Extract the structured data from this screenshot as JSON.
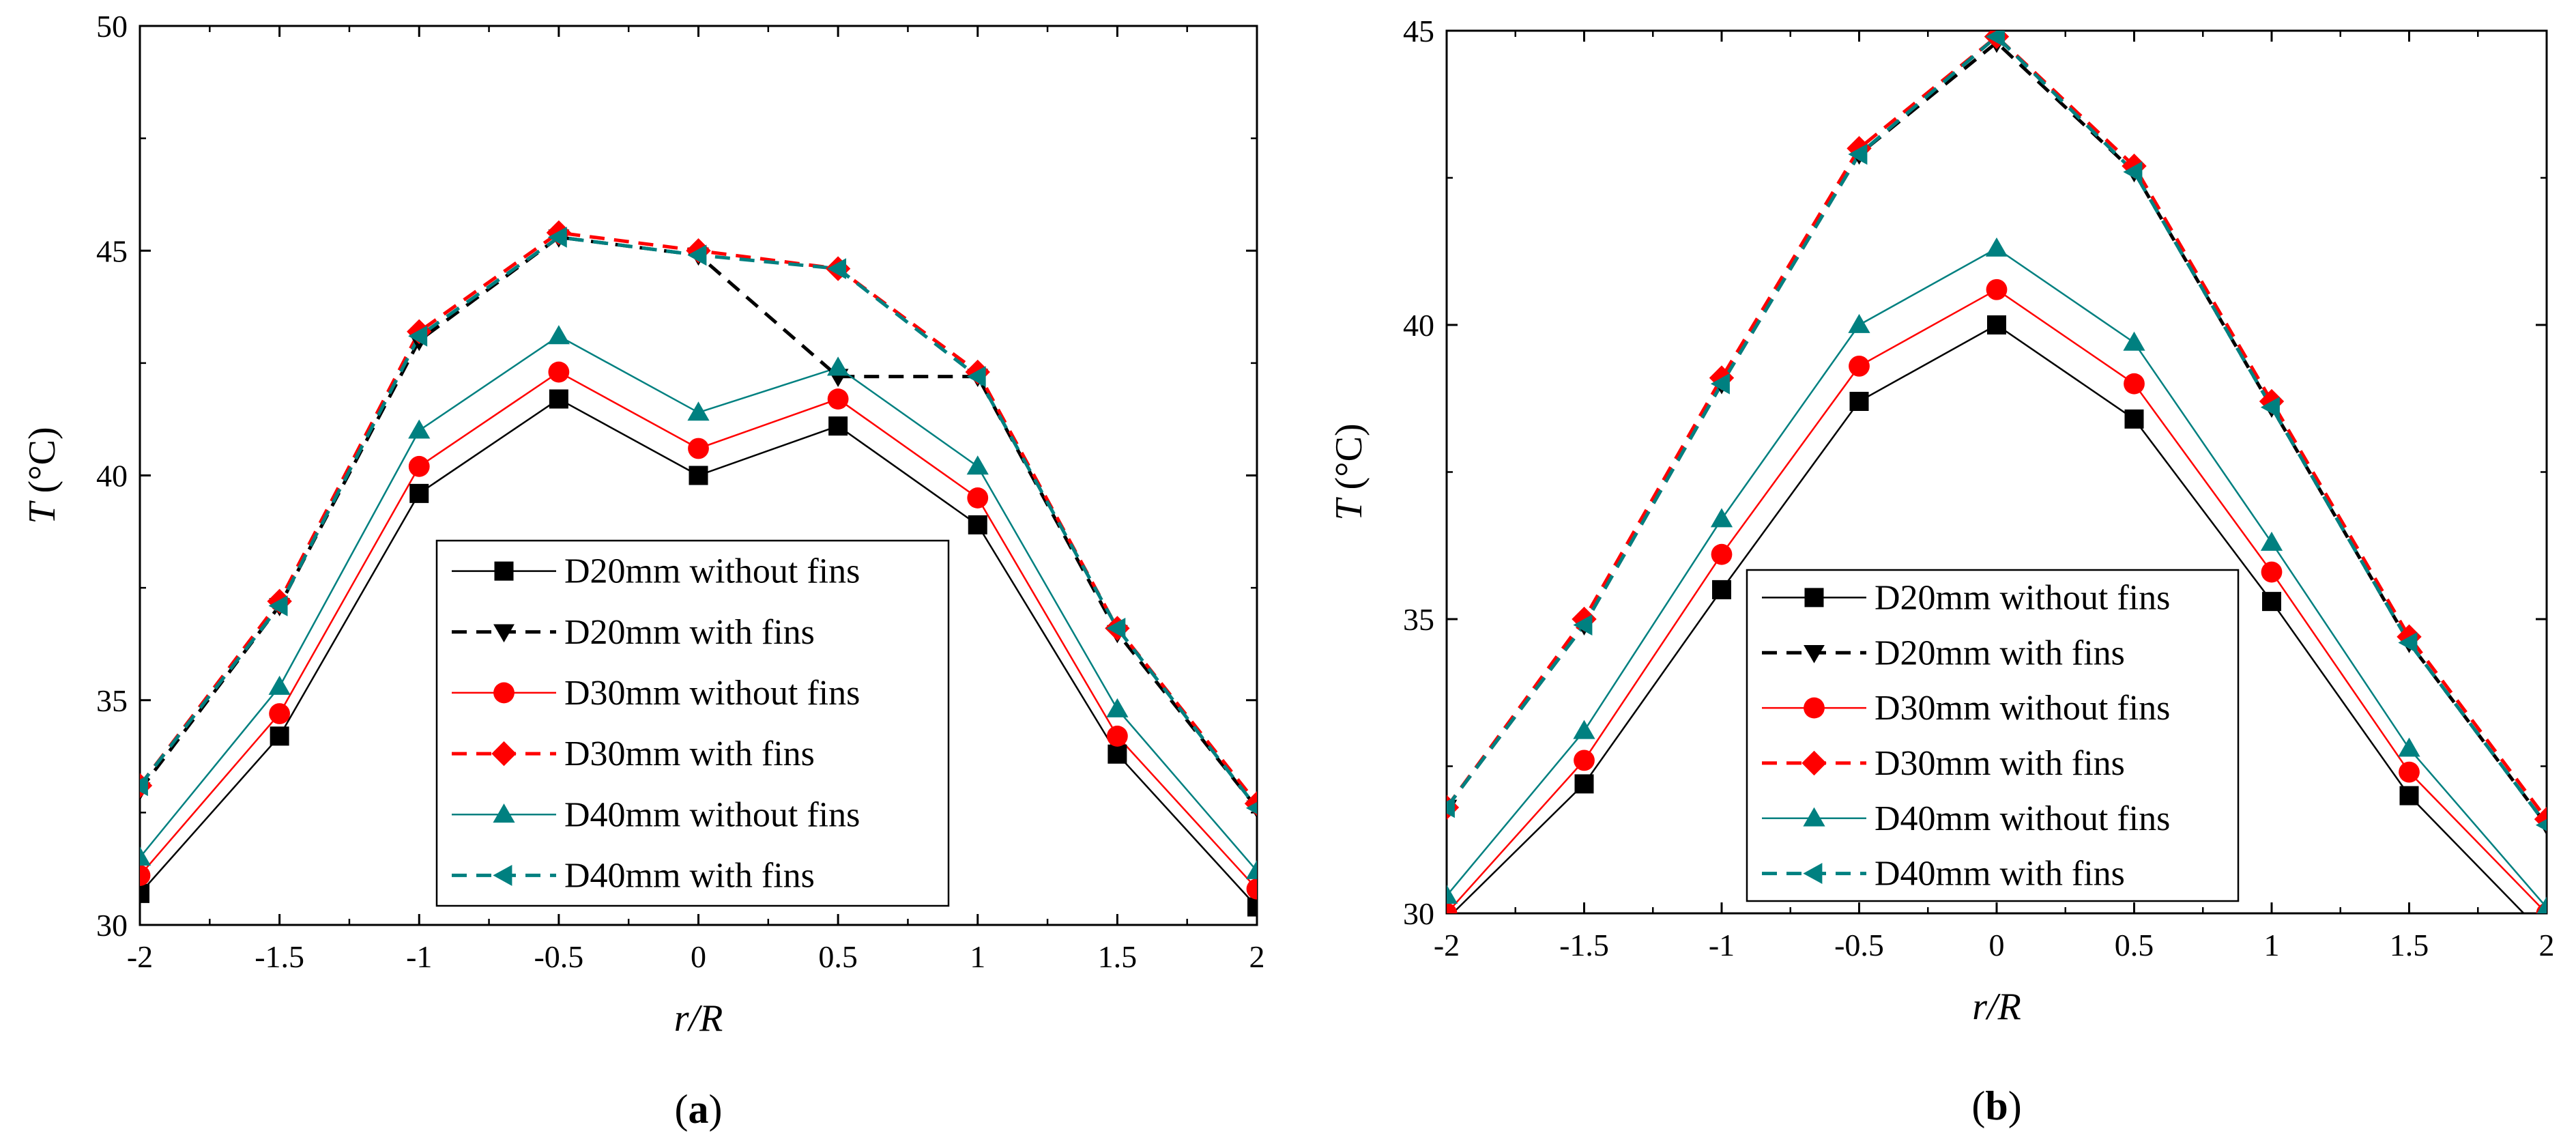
{
  "chart_data": [
    {
      "type": "line",
      "panel_label": "a",
      "title": "",
      "xlabel": "r/R",
      "ylabel": "T (°C)",
      "ylabel_var": "T",
      "ylabel_unit": " (°C)",
      "xlim": [
        -2,
        2
      ],
      "ylim": [
        30,
        50
      ],
      "xticks": [
        -2,
        -1.5,
        -1,
        -0.5,
        0,
        0.5,
        1,
        1.5,
        2
      ],
      "yticks": [
        30,
        35,
        40,
        45,
        50
      ],
      "grid": false,
      "legend_position": "bottom-center",
      "x": [
        -2,
        -1.5,
        -1,
        -0.5,
        0,
        0.5,
        1,
        1.5,
        2
      ],
      "series": [
        {
          "name": "D20mm without fins",
          "color": "#000000",
          "dashed": false,
          "marker": "square",
          "values": [
            30.7,
            34.2,
            39.6,
            41.7,
            40.0,
            41.1,
            38.9,
            33.8,
            30.4
          ]
        },
        {
          "name": "D20mm with fins",
          "color": "#000000",
          "dashed": true,
          "marker": "triangle-down",
          "values": [
            33.0,
            37.1,
            43.0,
            45.3,
            44.9,
            42.2,
            42.2,
            36.5,
            32.6
          ]
        },
        {
          "name": "D30mm without fins",
          "color": "#ff0000",
          "dashed": false,
          "marker": "circle",
          "values": [
            31.1,
            34.7,
            40.2,
            42.3,
            40.6,
            41.7,
            39.5,
            34.2,
            30.8
          ]
        },
        {
          "name": "D30mm with fins",
          "color": "#ff0000",
          "dashed": true,
          "marker": "diamond",
          "values": [
            33.1,
            37.2,
            43.2,
            45.4,
            45.0,
            44.6,
            42.3,
            36.6,
            32.7
          ]
        },
        {
          "name": "D40mm without fins",
          "color": "#008080",
          "dashed": false,
          "marker": "triangle-up",
          "values": [
            31.5,
            35.3,
            41.0,
            43.1,
            41.4,
            42.4,
            40.2,
            34.8,
            31.2
          ]
        },
        {
          "name": "D40mm with fins",
          "color": "#008080",
          "dashed": true,
          "marker": "triangle-left",
          "values": [
            33.1,
            37.1,
            43.1,
            45.3,
            44.9,
            44.6,
            42.2,
            36.6,
            32.6
          ]
        }
      ]
    },
    {
      "type": "line",
      "panel_label": "b",
      "title": "",
      "xlabel": "r/R",
      "ylabel": "T (°C)",
      "ylabel_var": "T",
      "ylabel_unit": " (°C)",
      "xlim": [
        -2,
        2
      ],
      "ylim": [
        30,
        45
      ],
      "xticks": [
        -2,
        -1.5,
        -1,
        -0.5,
        0,
        0.5,
        1,
        1.5,
        2
      ],
      "yticks": [
        30,
        35,
        40,
        45
      ],
      "grid": false,
      "legend_position": "bottom-center",
      "x": [
        -2,
        -1.5,
        -1,
        -0.5,
        0,
        0.5,
        1,
        1.5,
        2
      ],
      "series": [
        {
          "name": "D20mm without fins",
          "color": "#000000",
          "dashed": false,
          "marker": "square",
          "values": [
            29.9,
            32.2,
            35.5,
            38.7,
            40.0,
            38.4,
            35.3,
            32.0,
            29.6
          ]
        },
        {
          "name": "D20mm with fins",
          "color": "#000000",
          "dashed": true,
          "marker": "triangle-down",
          "values": [
            31.8,
            34.9,
            39.0,
            42.9,
            44.8,
            42.6,
            38.6,
            34.6,
            31.5
          ]
        },
        {
          "name": "D30mm without fins",
          "color": "#ff0000",
          "dashed": false,
          "marker": "circle",
          "values": [
            30.0,
            32.6,
            36.1,
            39.3,
            40.6,
            39.0,
            35.8,
            32.4,
            30.0
          ]
        },
        {
          "name": "D30mm with fins",
          "color": "#ff0000",
          "dashed": true,
          "marker": "diamond",
          "values": [
            31.8,
            35.0,
            39.1,
            43.0,
            44.9,
            42.7,
            38.7,
            34.7,
            31.6
          ]
        },
        {
          "name": "D40mm without fins",
          "color": "#008080",
          "dashed": false,
          "marker": "triangle-up",
          "values": [
            30.3,
            33.1,
            36.7,
            40.0,
            41.3,
            39.7,
            36.3,
            32.8,
            30.1
          ]
        },
        {
          "name": "D40mm with fins",
          "color": "#008080",
          "dashed": true,
          "marker": "triangle-left",
          "values": [
            31.8,
            34.9,
            39.0,
            42.9,
            44.9,
            42.6,
            38.6,
            34.6,
            31.5
          ]
        }
      ]
    }
  ]
}
